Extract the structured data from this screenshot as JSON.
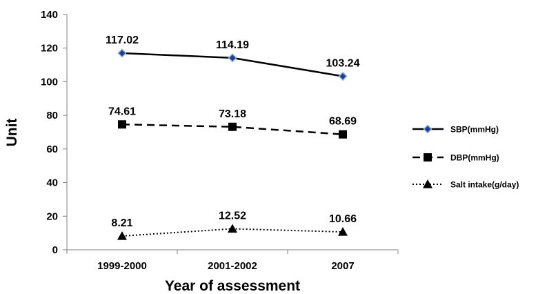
{
  "chart_data": {
    "type": "line",
    "categories": [
      "1999-2000",
      "2001-2002",
      "2007"
    ],
    "xlabel": "Year of assessment",
    "ylabel": "Unit",
    "ylim": [
      0,
      140
    ],
    "yticks": [
      0,
      20,
      40,
      60,
      80,
      100,
      120,
      140
    ],
    "grid": false,
    "legend_position": "right",
    "series": [
      {
        "name": "SBP(mmHg)",
        "values": [
          117.02,
          114.19,
          103.24
        ],
        "labels": [
          "117.02",
          "114.19",
          "103.24"
        ],
        "line_style": "solid",
        "marker": "diamond",
        "color": "#000000",
        "marker_fill": "#1f3f8f",
        "marker_stroke": "#8ab0dc"
      },
      {
        "name": "DBP(mmHg)",
        "values": [
          74.61,
          73.18,
          68.69
        ],
        "labels": [
          "74.61",
          "73.18",
          "68.69"
        ],
        "line_style": "dashed",
        "marker": "square",
        "color": "#000000",
        "marker_fill": "#000000"
      },
      {
        "name": "Salt intake(g/day)",
        "values": [
          8.21,
          12.52,
          10.66
        ],
        "labels": [
          "8.21",
          "12.52",
          "10.66"
        ],
        "line_style": "dotted",
        "marker": "triangle",
        "color": "#000000",
        "marker_fill": "#000000"
      }
    ]
  }
}
